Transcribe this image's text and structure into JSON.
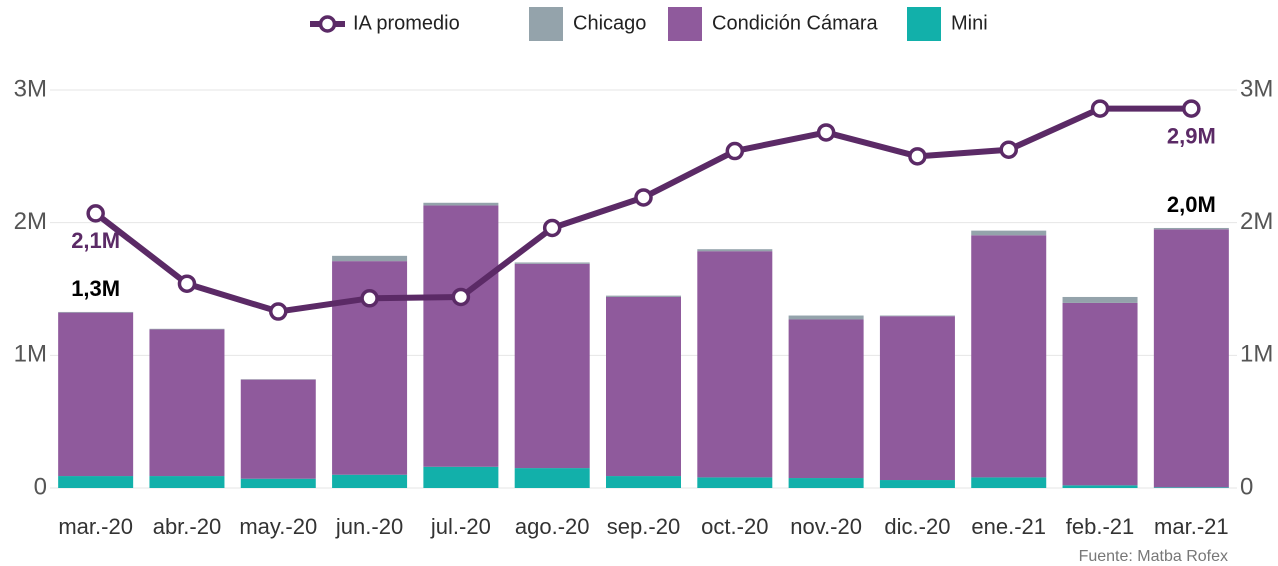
{
  "chart_data": {
    "type": "bar",
    "stacked": true,
    "categories": [
      "mar.-20",
      "abr.-20",
      "may.-20",
      "jun.-20",
      "jul.-20",
      "ago.-20",
      "sep.-20",
      "oct.-20",
      "nov.-20",
      "dic.-20",
      "ene.-21",
      "feb.-21",
      "mar.-21"
    ],
    "series": [
      {
        "name": "IA promedio",
        "type": "line",
        "axis": "y2",
        "color": "#5b2a66",
        "values": [
          2070000,
          1540000,
          1330000,
          1430000,
          1440000,
          1960000,
          2190000,
          2540000,
          2680000,
          2500000,
          2550000,
          2860000,
          2860000
        ],
        "value_labels": [
          "2,1M",
          null,
          null,
          null,
          null,
          null,
          null,
          null,
          null,
          null,
          null,
          null,
          "2,9M"
        ]
      },
      {
        "name": "Chicago",
        "color": "#94a3ab",
        "values": [
          5000,
          5000,
          3000,
          40000,
          20000,
          10000,
          10000,
          15000,
          30000,
          5000,
          35000,
          45000,
          10000
        ]
      },
      {
        "name": "Condición Cámara",
        "color": "#8f5a9c",
        "values": [
          1232000,
          1105000,
          747000,
          1610000,
          1970000,
          1540000,
          1350000,
          1705000,
          1195000,
          1235000,
          1825000,
          1375000,
          1945000
        ]
      },
      {
        "name": "Mini",
        "color": "#12b0aa",
        "values": [
          90000,
          90000,
          70000,
          100000,
          160000,
          150000,
          90000,
          80000,
          75000,
          60000,
          80000,
          20000,
          5000
        ]
      }
    ],
    "total_labels": [
      "1,3M",
      null,
      null,
      null,
      null,
      null,
      null,
      null,
      null,
      null,
      null,
      null,
      "2,0M"
    ],
    "ylim": [
      0,
      3000000
    ],
    "yticks": [
      0,
      {
        "value": 1000000,
        "label": "1M"
      },
      {
        "value": 2000000,
        "label": "2M"
      },
      {
        "value": 3000000,
        "label": "3M"
      }
    ],
    "y2lim": [
      0,
      3000000
    ],
    "y2ticks": [
      0,
      {
        "value": 1000000,
        "label": "1M"
      },
      {
        "value": 2000000,
        "label": "2M"
      },
      {
        "value": 3000000,
        "label": "3M"
      }
    ],
    "grid": true,
    "legend": "top",
    "source": "Fuente: Matba Rofex"
  }
}
